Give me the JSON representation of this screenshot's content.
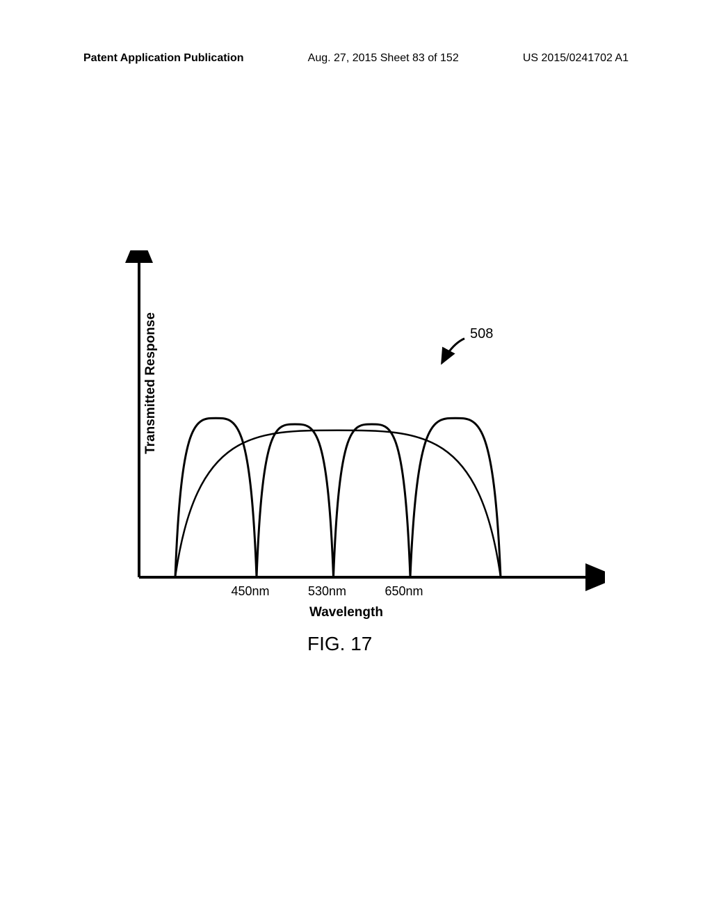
{
  "header": {
    "left": "Patent Application Publication",
    "center": "Aug. 27, 2015  Sheet 83 of 152",
    "right": "US 2015/0241702 A1"
  },
  "chart": {
    "type": "line",
    "y_label": "Transmitted Response",
    "x_label": "Wavelength",
    "figure_label": "FIG. 17",
    "callout_ref": "508",
    "x_ticks": [
      {
        "label": "450nm",
        "position_pct": 25
      },
      {
        "label": "530nm",
        "position_pct": 42
      },
      {
        "label": "650nm",
        "position_pct": 59
      }
    ],
    "lobes": [
      {
        "start": 8,
        "peak": 17,
        "end": 26,
        "peak_y": 52
      },
      {
        "start": 26,
        "peak": 34.5,
        "end": 43,
        "peak_y": 50
      },
      {
        "start": 43,
        "peak": 51.5,
        "end": 60,
        "peak_y": 50
      },
      {
        "start": 60,
        "peak": 70,
        "end": 80,
        "peak_y": 52
      }
    ],
    "envelope": {
      "start": 8,
      "end": 80,
      "peak_y": 48
    },
    "colors": {
      "stroke": "#000000",
      "background": "#ffffff"
    },
    "stroke_width": 3,
    "axis_stroke_width": 4
  }
}
